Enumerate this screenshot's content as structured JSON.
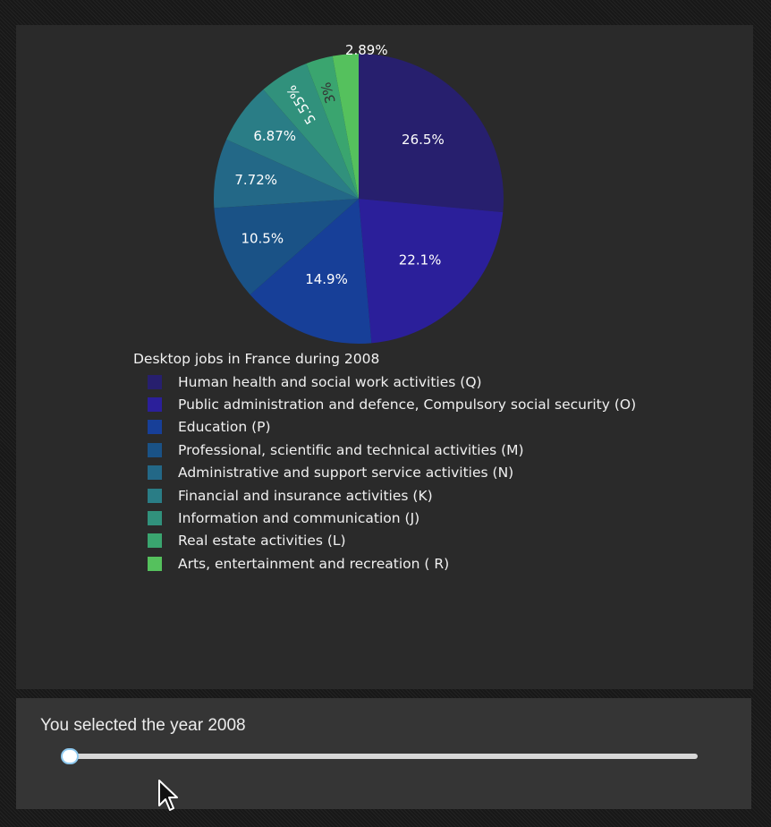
{
  "chart_data": {
    "type": "pie",
    "legend_title": "Desktop jobs in France during 2008",
    "legend_position": "bottom",
    "slices": [
      {
        "label": "Human health and social work activities (Q)",
        "value": 26.5,
        "text": "26.5%",
        "color": "#271f6e",
        "text_color": "#ffffff"
      },
      {
        "label": "Public administration and defence, Compulsory social security (O)",
        "value": 22.1,
        "text": "22.1%",
        "color": "#2b1f9a",
        "text_color": "#ffffff"
      },
      {
        "label": "Education (P)",
        "value": 14.9,
        "text": "14.9%",
        "color": "#173f98",
        "text_color": "#ffffff"
      },
      {
        "label": "Professional, scientific and technical activities (M)",
        "value": 10.5,
        "text": "10.5%",
        "color": "#1a5286",
        "text_color": "#ffffff"
      },
      {
        "label": "Administrative and support service activities (N)",
        "value": 7.72,
        "text": "7.72%",
        "color": "#236887",
        "text_color": "#ffffff"
      },
      {
        "label": "Financial and insurance activities (K)",
        "value": 6.87,
        "text": "6.87%",
        "color": "#2a7d86",
        "text_color": "#ffffff"
      },
      {
        "label": "Information and communication (J)",
        "value": 5.55,
        "text": "5.55%",
        "color": "#31917c",
        "text_color": "#ffffff"
      },
      {
        "label": "Real estate activities (L)",
        "value": 3.0,
        "text": "3%",
        "color": "#3aa56f",
        "text_color": "#333333"
      },
      {
        "label": "Arts, entertainment and recreation ( R)",
        "value": 2.89,
        "text": "2.89%",
        "color": "#55c15d",
        "text_color": "#ffffff"
      }
    ]
  },
  "slider": {
    "text": "You selected the year 2008",
    "value": 2008,
    "position_fraction": 0
  },
  "cursor": {
    "icon": "arrow-cursor-icon"
  }
}
